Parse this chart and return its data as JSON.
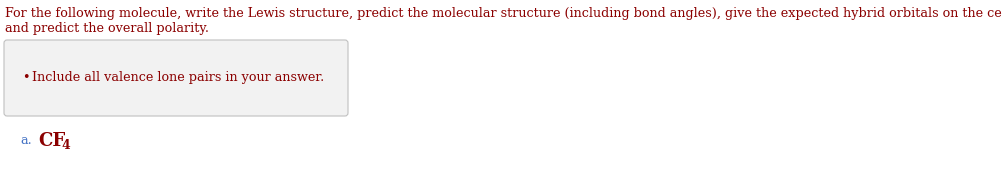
{
  "main_text_line1": "For the following molecule, write the Lewis structure, predict the molecular structure (including bond angles), give the expected hybrid orbitals on the central atom,",
  "main_text_line2": "and predict the overall polarity.",
  "bullet_text": "Include all valence lone pairs in your answer.",
  "label_a": "a.",
  "molecule": "CF",
  "molecule_sub": "4",
  "text_color": "#8B0000",
  "label_color": "#4472C4",
  "box_fill_color": "#f2f2f2",
  "box_edge_color": "#c0c0c0",
  "background_color": "#ffffff",
  "main_fontsize": 9.2,
  "bullet_fontsize": 9.2,
  "molecule_fontsize": 13.0,
  "label_fontsize": 9.2
}
